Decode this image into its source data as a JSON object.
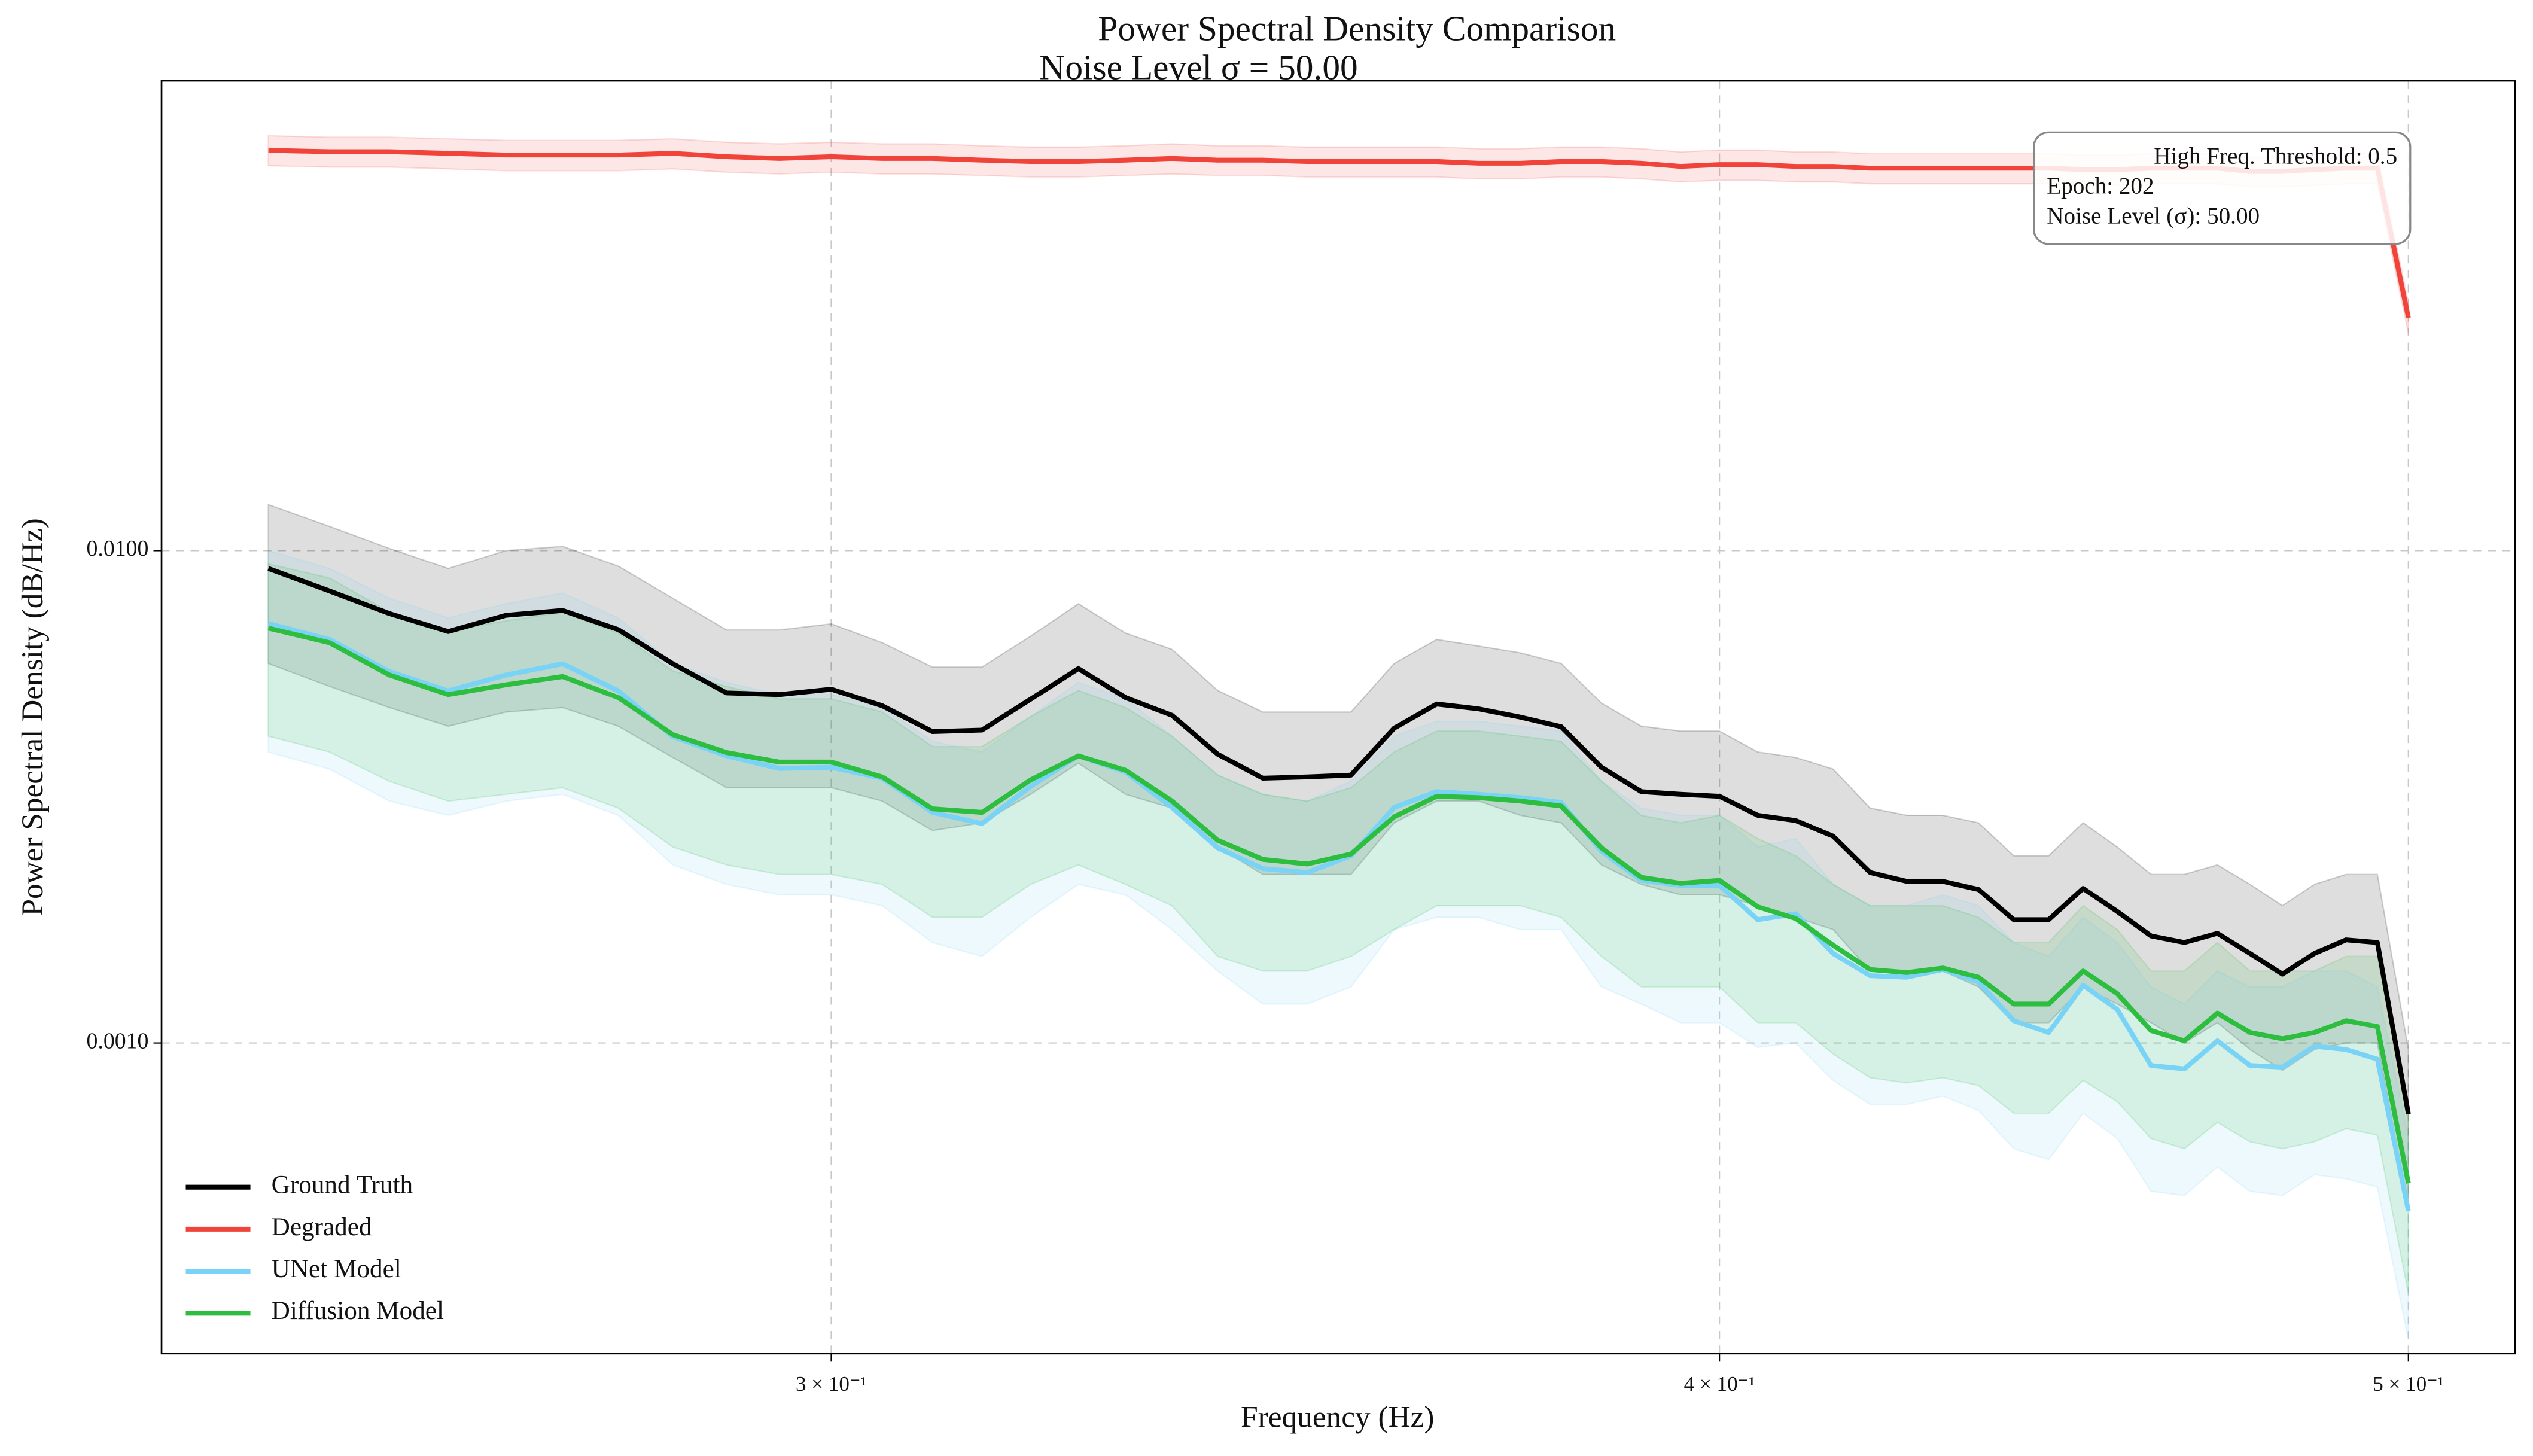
{
  "chart_data": {
    "type": "line",
    "title": "Power Spectral Density Comparison",
    "subtitle": "Noise Level σ = 50.00",
    "x_label": "Frequency (Hz)",
    "y_label": "Power Spectral Density (dB/Hz)",
    "x_log": true,
    "y_log": true,
    "grid": true,
    "legend": "lower left",
    "xlim": [
      0.2415,
      0.5176
    ],
    "ylim": [
      0.000234,
      0.09
    ],
    "xticks": [
      {
        "value": 0.3,
        "label": "3 × 10⁻¹"
      },
      {
        "value": 0.4,
        "label": "4 × 10⁻¹"
      },
      {
        "value": 0.5,
        "label": "5 × 10⁻¹"
      }
    ],
    "yticks": [
      {
        "value": 0.001,
        "label": "0.0010"
      },
      {
        "value": 0.01,
        "label": "0.0100"
      }
    ],
    "annotations": [
      "High Freq. Threshold: 0.5",
      "Epoch: 202",
      "Noise Level (σ): 50.00"
    ],
    "x": [
      0.25,
      0.255,
      0.26,
      0.265,
      0.27,
      0.275,
      0.28,
      0.285,
      0.29,
      0.295,
      0.3,
      0.305,
      0.31,
      0.315,
      0.32,
      0.325,
      0.33,
      0.335,
      0.34,
      0.345,
      0.35,
      0.355,
      0.36,
      0.365,
      0.37,
      0.375,
      0.38,
      0.385,
      0.39,
      0.395,
      0.4,
      0.405,
      0.41,
      0.415,
      0.42,
      0.425,
      0.43,
      0.435,
      0.44,
      0.445,
      0.45,
      0.455,
      0.46,
      0.465,
      0.47,
      0.475,
      0.48,
      0.485,
      0.49,
      0.495,
      0.5
    ],
    "series": [
      {
        "name": "Ground Truth",
        "color": "#000000",
        "values": [
          0.0092,
          0.00828,
          0.00745,
          0.00685,
          0.00739,
          0.00756,
          0.00691,
          0.00589,
          0.00514,
          0.0051,
          0.00523,
          0.00484,
          0.00429,
          0.00432,
          0.00499,
          0.00576,
          0.00503,
          0.00463,
          0.00386,
          0.00345,
          0.00347,
          0.0035,
          0.00436,
          0.00488,
          0.00477,
          0.00459,
          0.00439,
          0.00363,
          0.00324,
          0.0032,
          0.00317,
          0.0029,
          0.00283,
          0.00263,
          0.00222,
          0.00213,
          0.00213,
          0.00205,
          0.00178,
          0.00178,
          0.00206,
          0.00185,
          0.00165,
          0.0016,
          0.00167,
          0.00152,
          0.00138,
          0.00152,
          0.00162,
          0.0016,
          0.000717
        ],
        "upper": [
          0.0124,
          0.0112,
          0.0101,
          0.0092,
          0.01,
          0.0102,
          0.0093,
          0.008,
          0.0069,
          0.0069,
          0.0071,
          0.0065,
          0.0058,
          0.0058,
          0.0067,
          0.0078,
          0.0068,
          0.0063,
          0.0052,
          0.0047,
          0.0047,
          0.0047,
          0.0059,
          0.0066,
          0.0064,
          0.0062,
          0.0059,
          0.0049,
          0.0044,
          0.0043,
          0.0043,
          0.0039,
          0.0038,
          0.0036,
          0.003,
          0.0029,
          0.0029,
          0.0028,
          0.0024,
          0.0024,
          0.0028,
          0.0025,
          0.0022,
          0.0022,
          0.0023,
          0.0021,
          0.0019,
          0.0021,
          0.0022,
          0.0022,
          0.00097
        ],
        "lower": [
          0.0059,
          0.0053,
          0.0048,
          0.0044,
          0.0047,
          0.0048,
          0.0044,
          0.0038,
          0.0033,
          0.0033,
          0.0033,
          0.0031,
          0.0027,
          0.0028,
          0.0032,
          0.0037,
          0.0032,
          0.003,
          0.0025,
          0.0022,
          0.0022,
          0.0022,
          0.0028,
          0.0031,
          0.0031,
          0.0029,
          0.0028,
          0.0023,
          0.0021,
          0.002,
          0.002,
          0.0019,
          0.0018,
          0.0017,
          0.0014,
          0.0014,
          0.0014,
          0.0013,
          0.0011,
          0.0011,
          0.0013,
          0.0012,
          0.0011,
          0.001,
          0.0011,
          0.00097,
          0.00088,
          0.00097,
          0.001,
          0.001,
          0.00046
        ]
      },
      {
        "name": "Degraded",
        "color": "#f0443a",
        "values": [
          0.065,
          0.0646,
          0.0646,
          0.0641,
          0.0636,
          0.0636,
          0.0636,
          0.0641,
          0.0631,
          0.0626,
          0.0631,
          0.0626,
          0.0626,
          0.0621,
          0.0617,
          0.0617,
          0.0621,
          0.0626,
          0.0621,
          0.0621,
          0.0617,
          0.0617,
          0.0617,
          0.0617,
          0.0612,
          0.0612,
          0.0617,
          0.0617,
          0.0612,
          0.0603,
          0.0608,
          0.0608,
          0.0603,
          0.0603,
          0.0598,
          0.0598,
          0.0598,
          0.0598,
          0.0598,
          0.0598,
          0.0594,
          0.0594,
          0.0598,
          0.0598,
          0.0598,
          0.0589,
          0.0589,
          0.0594,
          0.0598,
          0.0598,
          0.0297
        ],
        "upper": [
          0.0696,
          0.0691,
          0.0691,
          0.0686,
          0.0681,
          0.0681,
          0.0681,
          0.0686,
          0.0675,
          0.067,
          0.0675,
          0.067,
          0.067,
          0.0664,
          0.066,
          0.066,
          0.0664,
          0.067,
          0.0664,
          0.0664,
          0.066,
          0.066,
          0.066,
          0.066,
          0.0655,
          0.0655,
          0.066,
          0.066,
          0.0655,
          0.0645,
          0.0651,
          0.0651,
          0.0645,
          0.0645,
          0.064,
          0.064,
          0.064,
          0.064,
          0.064,
          0.064,
          0.0636,
          0.0636,
          0.064,
          0.064,
          0.064,
          0.063,
          0.063,
          0.0636,
          0.064,
          0.064,
          0.0318
        ],
        "lower": [
          0.0605,
          0.0601,
          0.0601,
          0.0596,
          0.0591,
          0.0591,
          0.0591,
          0.0596,
          0.0587,
          0.0582,
          0.0587,
          0.0582,
          0.0582,
          0.0578,
          0.0574,
          0.0574,
          0.0578,
          0.0582,
          0.0578,
          0.0578,
          0.0574,
          0.0574,
          0.0574,
          0.0574,
          0.0569,
          0.0569,
          0.0574,
          0.0574,
          0.0569,
          0.0561,
          0.0565,
          0.0565,
          0.0561,
          0.0561,
          0.0556,
          0.0556,
          0.0556,
          0.0556,
          0.0556,
          0.0556,
          0.0552,
          0.0552,
          0.0556,
          0.0556,
          0.0556,
          0.0548,
          0.0548,
          0.0552,
          0.0556,
          0.0556,
          0.0276
        ]
      },
      {
        "name": "UNet Model",
        "color": "#78d3f6",
        "values": [
          0.00711,
          0.0066,
          0.00568,
          0.00519,
          0.00559,
          0.00589,
          0.00519,
          0.00419,
          0.00383,
          0.00361,
          0.00363,
          0.00345,
          0.00294,
          0.00279,
          0.00332,
          0.00383,
          0.00355,
          0.00301,
          0.00249,
          0.00226,
          0.00222,
          0.0024,
          0.00301,
          0.00324,
          0.0032,
          0.00315,
          0.00308,
          0.00245,
          0.00214,
          0.00209,
          0.00209,
          0.00178,
          0.00183,
          0.00152,
          0.00137,
          0.00136,
          0.00141,
          0.00133,
          0.00111,
          0.00105,
          0.00131,
          0.00117,
          0.0009,
          0.000886,
          0.00101,
          0.0009,
          0.000893,
          0.000985,
          0.00097,
          0.000927,
          0.000456
        ],
        "upper": [
          0.01,
          0.0092,
          0.008,
          0.0073,
          0.0078,
          0.0082,
          0.0073,
          0.0059,
          0.0054,
          0.0051,
          0.0051,
          0.0048,
          0.0041,
          0.0039,
          0.0046,
          0.0054,
          0.005,
          0.0042,
          0.0035,
          0.0032,
          0.0031,
          0.0034,
          0.0042,
          0.0045,
          0.0045,
          0.0044,
          0.0043,
          0.0034,
          0.003,
          0.0029,
          0.0029,
          0.0025,
          0.0026,
          0.0021,
          0.0019,
          0.0019,
          0.002,
          0.0019,
          0.0016,
          0.0015,
          0.0018,
          0.0016,
          0.0013,
          0.0012,
          0.0014,
          0.0013,
          0.0013,
          0.0014,
          0.0014,
          0.0013,
          0.00064
        ],
        "lower": [
          0.0039,
          0.0036,
          0.0031,
          0.0029,
          0.0031,
          0.0032,
          0.0029,
          0.0023,
          0.0021,
          0.002,
          0.002,
          0.0019,
          0.0016,
          0.0015,
          0.0018,
          0.0021,
          0.002,
          0.0017,
          0.0014,
          0.0012,
          0.0012,
          0.0013,
          0.0017,
          0.0018,
          0.0018,
          0.0017,
          0.0017,
          0.0013,
          0.0012,
          0.0011,
          0.0011,
          0.00098,
          0.001,
          0.00084,
          0.00075,
          0.00075,
          0.00078,
          0.00073,
          0.00061,
          0.00058,
          0.00072,
          0.00064,
          0.0005,
          0.00049,
          0.00056,
          0.0005,
          0.00049,
          0.00054,
          0.00053,
          0.00051,
          0.00025
        ]
      },
      {
        "name": "Diffusion Model",
        "color": "#2dbd3f",
        "values": [
          0.00696,
          0.0065,
          0.00559,
          0.0051,
          0.00534,
          0.00555,
          0.00503,
          0.00423,
          0.00389,
          0.00372,
          0.00372,
          0.00347,
          0.00299,
          0.00294,
          0.00342,
          0.00383,
          0.00358,
          0.0031,
          0.00258,
          0.00236,
          0.00231,
          0.00242,
          0.00288,
          0.00317,
          0.00315,
          0.0031,
          0.00303,
          0.00249,
          0.00217,
          0.00211,
          0.00214,
          0.00189,
          0.00179,
          0.00158,
          0.00141,
          0.00139,
          0.00142,
          0.00136,
          0.0012,
          0.0012,
          0.0014,
          0.00126,
          0.00106,
          0.00101,
          0.00115,
          0.00105,
          0.00102,
          0.00105,
          0.00111,
          0.00108,
          0.000519
        ],
        "upper": [
          0.0094,
          0.0088,
          0.0075,
          0.0069,
          0.0072,
          0.0075,
          0.0068,
          0.0057,
          0.0053,
          0.005,
          0.005,
          0.0047,
          0.004,
          0.004,
          0.0046,
          0.0052,
          0.0048,
          0.0042,
          0.0035,
          0.0032,
          0.0031,
          0.0033,
          0.0039,
          0.0043,
          0.0043,
          0.0042,
          0.0041,
          0.0034,
          0.0029,
          0.0028,
          0.0029,
          0.0026,
          0.0024,
          0.0021,
          0.0019,
          0.0019,
          0.0019,
          0.0018,
          0.0016,
          0.0016,
          0.0019,
          0.0017,
          0.0014,
          0.0014,
          0.0016,
          0.0014,
          0.0014,
          0.0014,
          0.0015,
          0.0015,
          0.0007
        ],
        "lower": [
          0.0042,
          0.0039,
          0.0034,
          0.0031,
          0.0032,
          0.0033,
          0.003,
          0.0025,
          0.0023,
          0.0022,
          0.0022,
          0.0021,
          0.0018,
          0.0018,
          0.0021,
          0.0023,
          0.0021,
          0.0019,
          0.0015,
          0.0014,
          0.0014,
          0.0015,
          0.0017,
          0.0019,
          0.0019,
          0.0019,
          0.0018,
          0.0015,
          0.0013,
          0.0013,
          0.0013,
          0.0011,
          0.0011,
          0.00095,
          0.00085,
          0.00083,
          0.00085,
          0.00082,
          0.00072,
          0.00072,
          0.00084,
          0.00076,
          0.00064,
          0.00061,
          0.00069,
          0.00063,
          0.00061,
          0.00063,
          0.00067,
          0.00065,
          0.00031
        ]
      }
    ]
  }
}
